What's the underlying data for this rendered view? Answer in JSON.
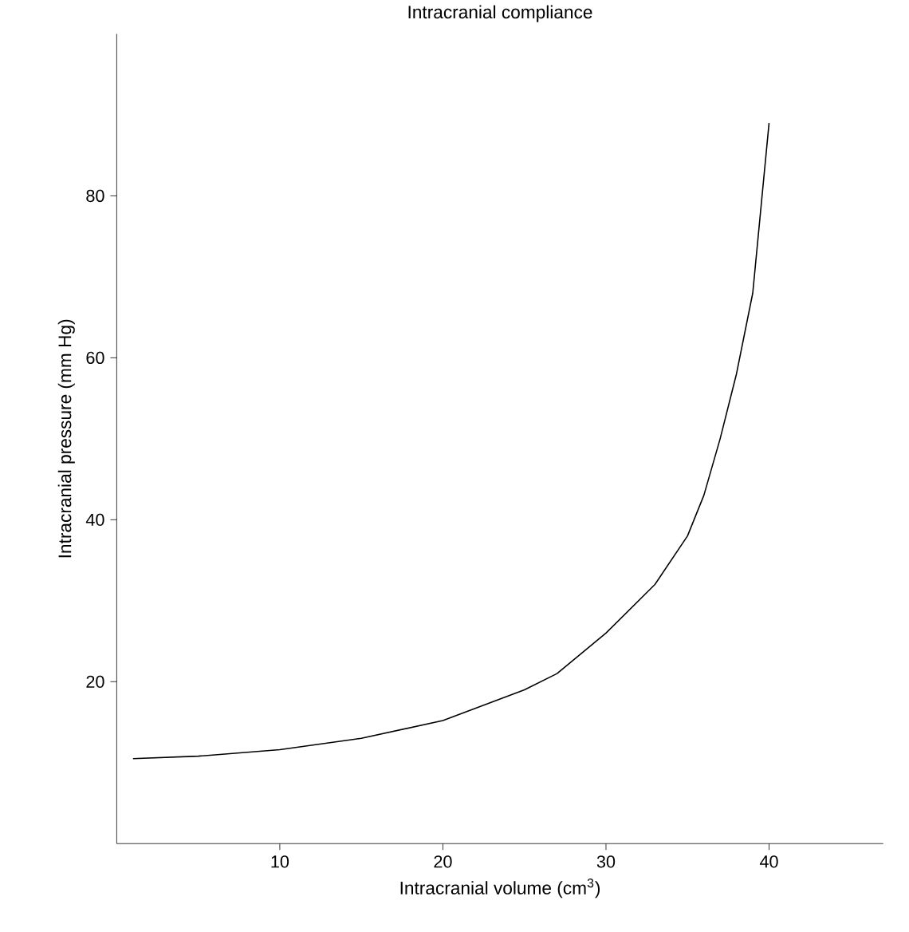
{
  "chart_data": {
    "type": "line",
    "title": "Intracranial compliance",
    "xlabel": "Intracranial volume (cm$^{3}$)",
    "ylabel": "Intracranial pressure (mm Hg)",
    "x": [
      1,
      5,
      10,
      15,
      20,
      25,
      27,
      30,
      33,
      35,
      36,
      37,
      38,
      39,
      40
    ],
    "series": [
      {
        "color": "#000000",
        "values": [
          10.5,
          10.8,
          11.6,
          13,
          15.2,
          19,
          21,
          26,
          32,
          38,
          43,
          50,
          58,
          68,
          89
        ]
      }
    ],
    "xlim": [
      0,
      47
    ],
    "ylim": [
      0,
      100
    ],
    "xticks": [
      10,
      20,
      30,
      40
    ],
    "yticks": [
      20,
      40,
      60,
      80
    ],
    "grid": false,
    "marker": "none",
    "line_style": "solid"
  }
}
